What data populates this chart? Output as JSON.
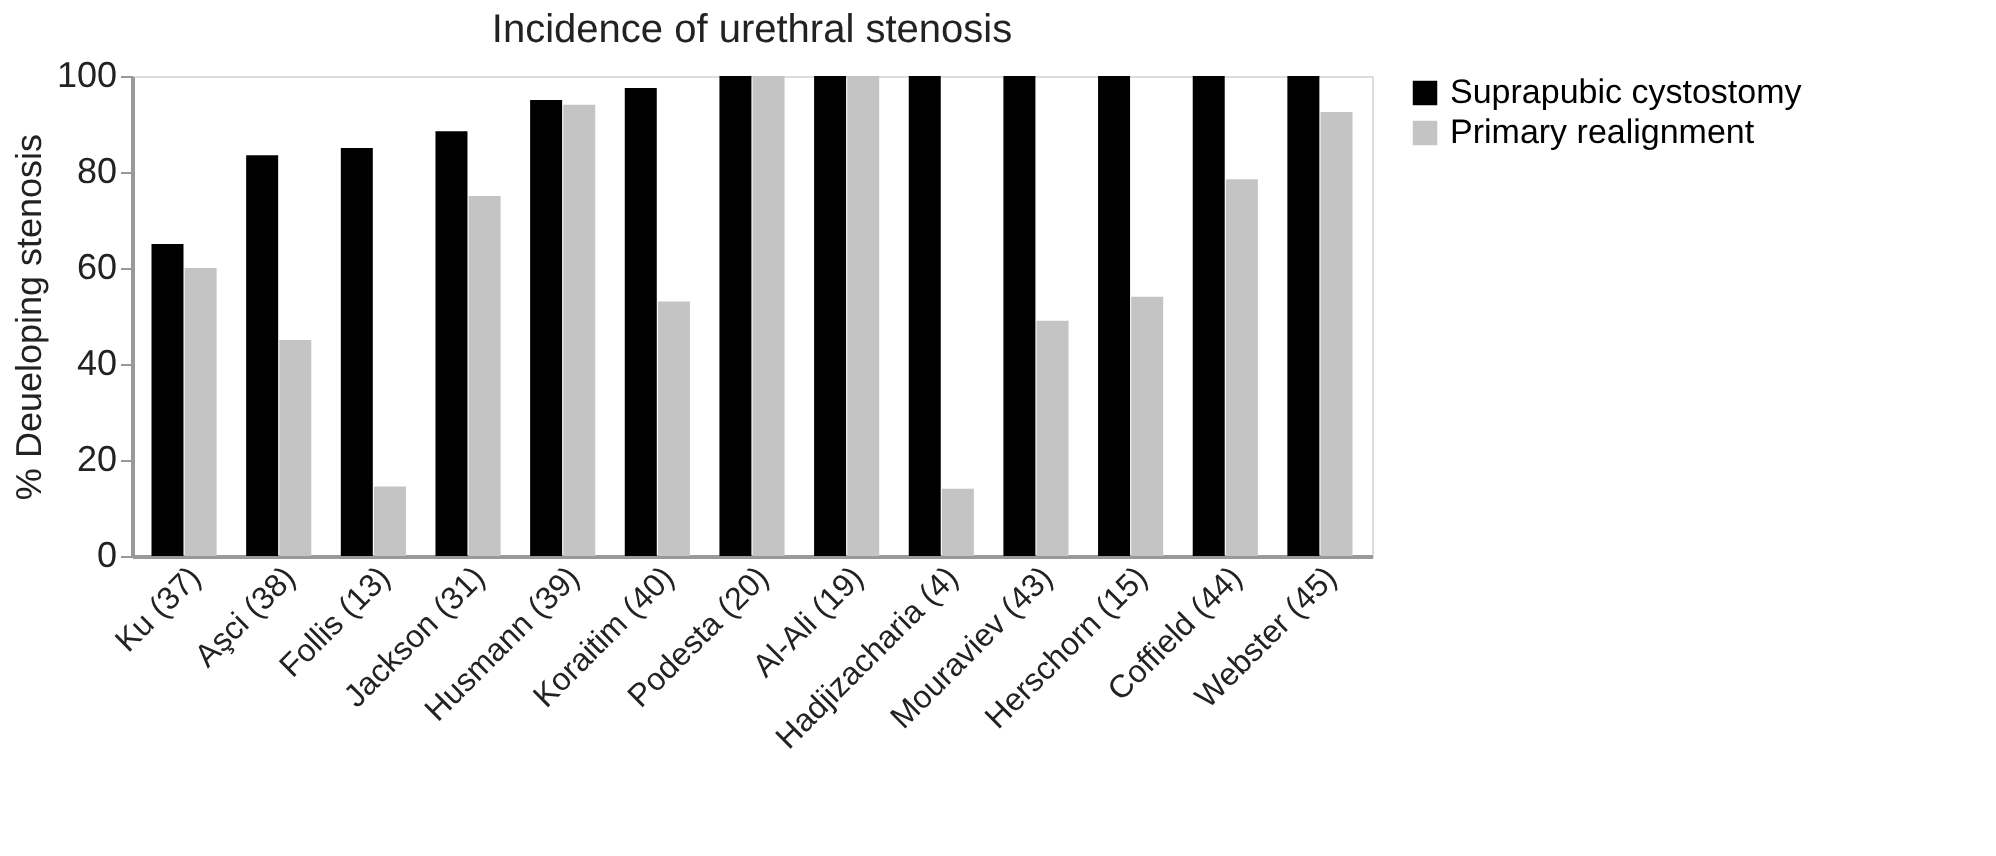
{
  "chart_data": {
    "type": "bar",
    "title": "Incidence of urethral stenosis",
    "ylabel": "% Deueloping stenosis",
    "categories": [
      "Ku (37)",
      "Aşci (38)",
      "Follis (13)",
      "Jackson (31)",
      "Husmann (39)",
      "Koraitim (40)",
      "Podesta (20)",
      "Al-Ali (19)",
      "Hadjizacharia (4)",
      "Mouraviev (43)",
      "Herschorn (15)",
      "Coffield (44)",
      "Webster (45)"
    ],
    "series": [
      {
        "name": "Suprapubic cystostomy",
        "color": "#000000",
        "values": [
          65,
          83.5,
          85,
          88.5,
          95,
          97.5,
          100,
          100,
          100,
          100,
          100,
          100,
          100
        ]
      },
      {
        "name": "Primary realignment",
        "color": "#c4c4c4",
        "values": [
          60,
          45,
          14.5,
          75,
          94,
          53,
          100,
          100,
          14,
          49,
          54,
          78.5,
          92.5
        ]
      }
    ],
    "ylim": [
      0,
      100
    ],
    "yticks": [
      0,
      20,
      40,
      60,
      80,
      100
    ],
    "grid": false,
    "legend": "right"
  }
}
